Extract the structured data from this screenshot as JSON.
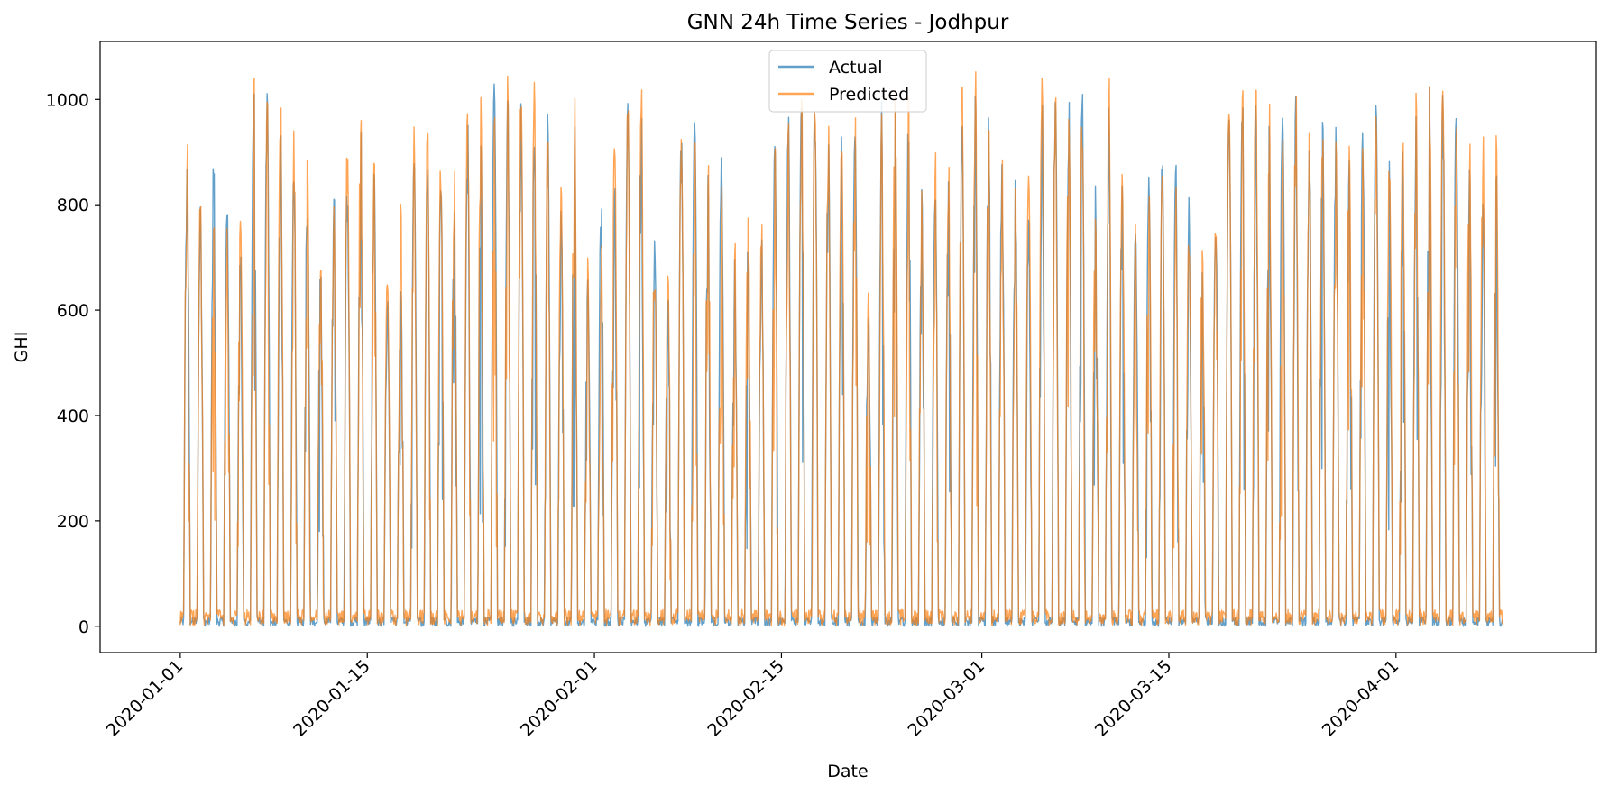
{
  "chart_data": {
    "type": "line",
    "title": "GNN 24h Time Series - Jodhpur",
    "xlabel": "Date",
    "ylabel": "GHI",
    "xlim": [
      "2019-12-26",
      "2020-04-16"
    ],
    "ylim": [
      -50,
      1110
    ],
    "x_ticks": [
      "2020-01-01",
      "2020-01-15",
      "2020-02-01",
      "2020-02-15",
      "2020-03-01",
      "2020-03-15",
      "2020-04-01"
    ],
    "y_ticks": [
      0,
      200,
      400,
      600,
      800,
      1000
    ],
    "x_range": [
      "2020-01-01",
      "2020-04-08"
    ],
    "resolution": "hourly",
    "grid": false,
    "legend_position": "upper center",
    "series": [
      {
        "name": "Actual",
        "color": "#1f77b4",
        "opacity": 0.7
      },
      {
        "name": "Predicted",
        "color": "#ff7f0e",
        "opacity": 0.7
      }
    ],
    "daily_peaks": {
      "dates_start": "2020-01-01",
      "actual": [
        885,
        800,
        900,
        820,
        730,
        1020,
        1020,
        960,
        870,
        860,
        700,
        830,
        880,
        960,
        950,
        620,
        720,
        900,
        910,
        880,
        850,
        960,
        1000,
        1030,
        1040,
        1000,
        990,
        980,
        860,
        960,
        660,
        840,
        900,
        1000,
        1010,
        770,
        640,
        960,
        960,
        900,
        890,
        700,
        760,
        740,
        930,
        1000,
        1010,
        1020,
        940,
        930,
        950,
        620,
        1000,
        1010,
        1000,
        840,
        840,
        870,
        990,
        1010,
        1000,
        880,
        880,
        860,
        1010,
        1010,
        1000,
        1020,
        840,
        990,
        840,
        770,
        900,
        900,
        890,
        820,
        680,
        790,
        990,
        1000,
        1020,
        1010,
        1000,
        1020,
        990,
        970,
        980,
        920,
        960,
        990,
        910,
        900,
        1010,
        1050,
        1030,
        980,
        900,
        920,
        900
      ],
      "predicted": [
        950,
        850,
        780,
        760,
        770,
        1040,
        1040,
        1000,
        960,
        900,
        750,
        820,
        960,
        1040,
        930,
        680,
        820,
        950,
        980,
        900,
        900,
        1020,
        1050,
        1050,
        1050,
        1040,
        1040,
        960,
        880,
        1040,
        700,
        750,
        950,
        1030,
        1040,
        740,
        680,
        940,
        950,
        880,
        840,
        730,
        780,
        790,
        940,
        1000,
        1010,
        1020,
        960,
        930,
        970,
        650,
        1020,
        1030,
        1020,
        870,
        900,
        910,
        1030,
        1060,
        1030,
        900,
        870,
        880,
        1040,
        1040,
        1030,
        1050,
        860,
        1060,
        870,
        780,
        880,
        880,
        860,
        790,
        760,
        800,
        990,
        1040,
        1060,
        1000,
        990,
        1020,
        950,
        940,
        940,
        960,
        990,
        1030,
        900,
        950,
        1020,
        1060,
        1030,
        970,
        950,
        940,
        950
      ]
    }
  }
}
